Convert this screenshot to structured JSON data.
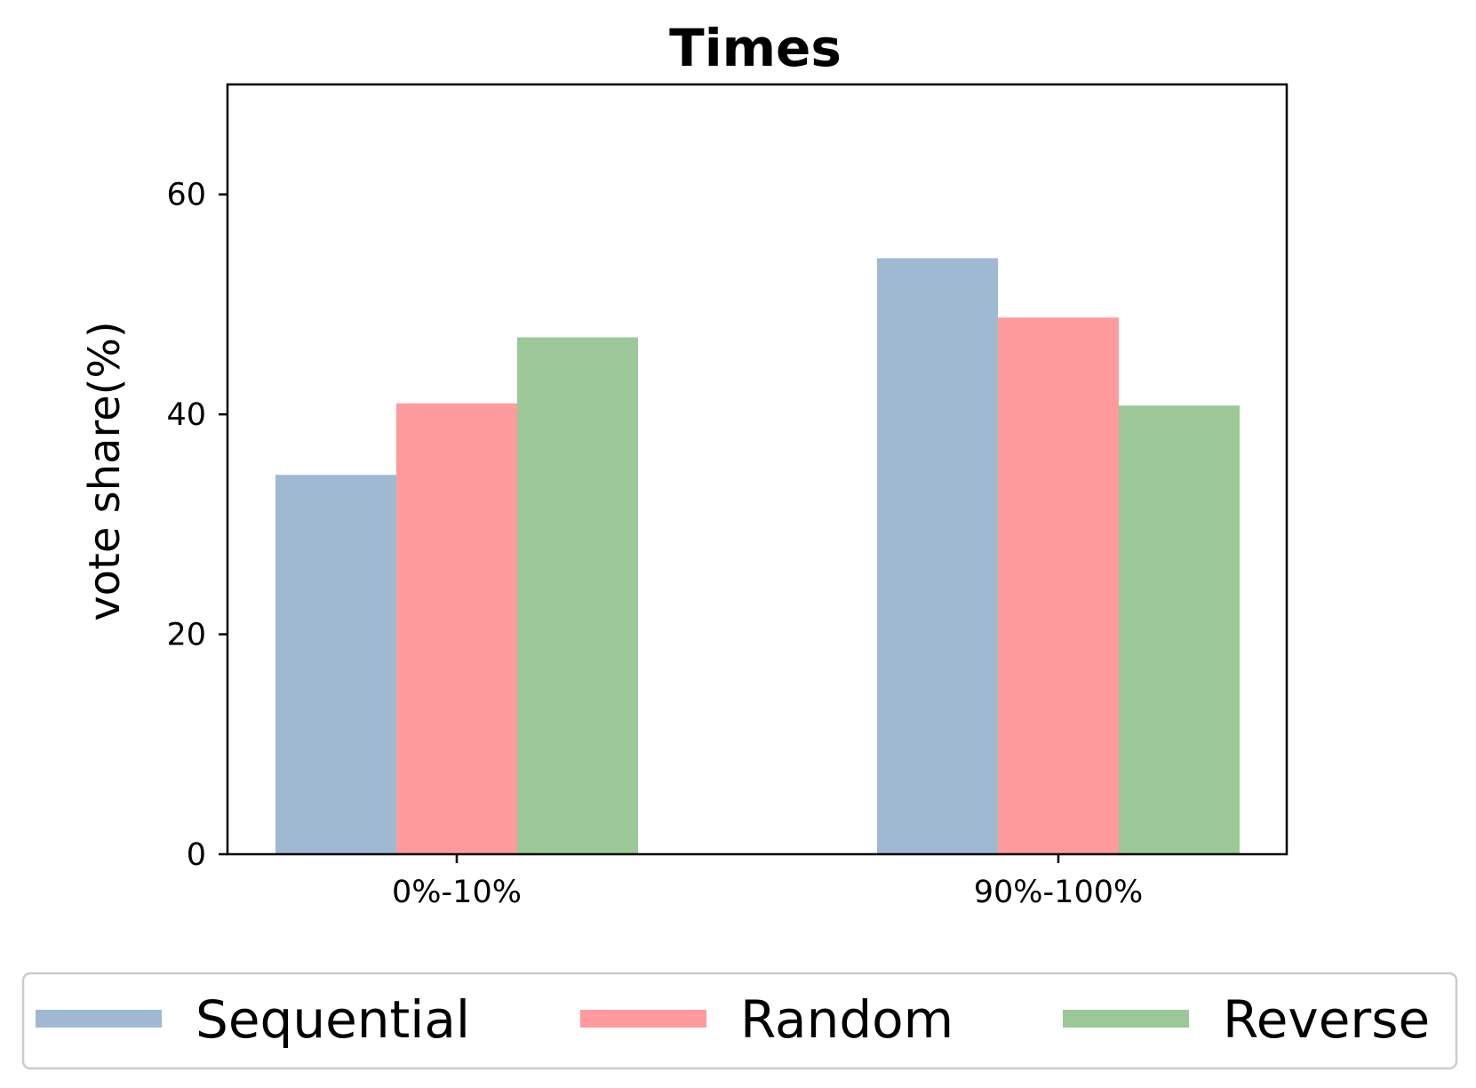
{
  "chart_data": {
    "type": "bar",
    "title": "Times",
    "xlabel": "",
    "ylabel": "vote share(%)",
    "categories": [
      "0%-10%",
      "90%-100%"
    ],
    "series": [
      {
        "name": "Sequential",
        "values": [
          34.5,
          54.2
        ],
        "color": "#a0b9d2"
      },
      {
        "name": "Random",
        "values": [
          41.0,
          48.8
        ],
        "color": "#ff9b9d"
      },
      {
        "name": "Reverse",
        "values": [
          47.0,
          40.8
        ],
        "color": "#9bc896"
      }
    ],
    "ylim": [
      0,
      70
    ],
    "yticks": [
      0,
      20,
      40,
      60
    ],
    "ytick_labels": [
      "0",
      "20",
      "40",
      "60"
    ],
    "grid": false,
    "legend_position": "bottom"
  }
}
